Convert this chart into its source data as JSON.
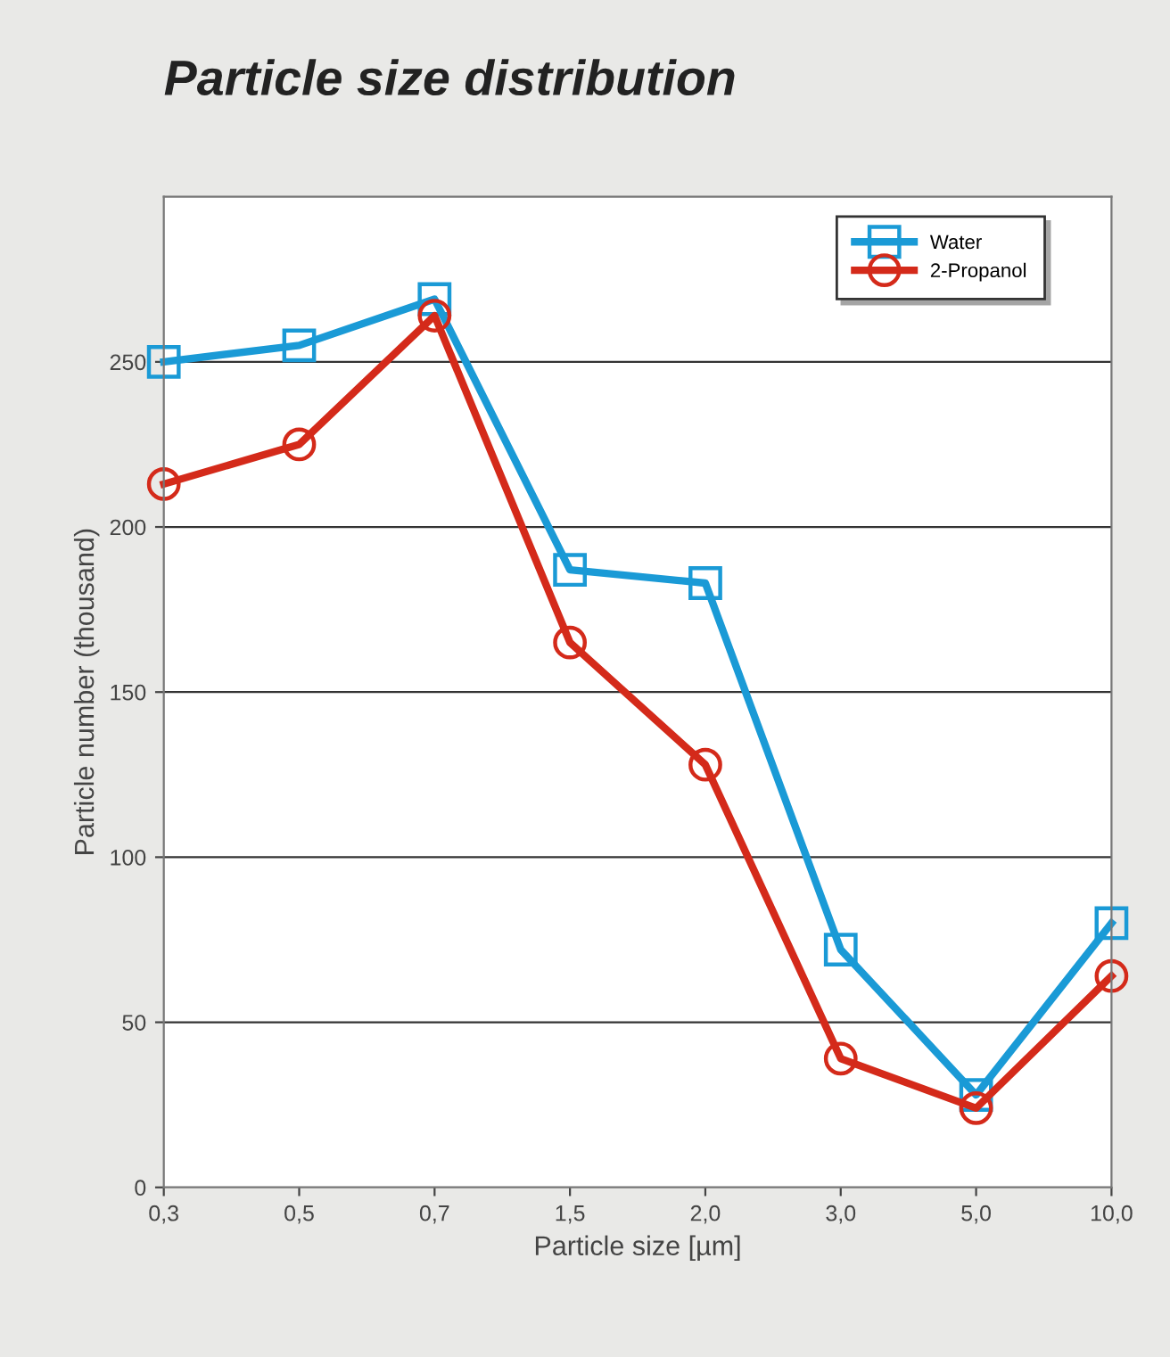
{
  "chart_data": {
    "type": "line",
    "title": "Particle size distribution",
    "xlabel": "Particle size [µm]",
    "ylabel": "Particle number (thousand)",
    "categories": [
      "0,3",
      "0,5",
      "0,7",
      "1,5",
      "2,0",
      "3,0",
      "5,0",
      "10,0"
    ],
    "series": [
      {
        "name": "Water",
        "color": "#1a9ad6",
        "marker": "square",
        "values": [
          250,
          255,
          269,
          187,
          183,
          72,
          28,
          80
        ]
      },
      {
        "name": "2-Propanol",
        "color": "#d42a1a",
        "marker": "circle",
        "values": [
          213,
          225,
          264,
          165,
          128,
          39,
          24,
          64
        ]
      }
    ],
    "ylim": [
      0,
      300
    ],
    "yticks": [
      0,
      50,
      100,
      150,
      200,
      250
    ],
    "grid": "y",
    "legend": "top right",
    "line_style": "solid"
  }
}
